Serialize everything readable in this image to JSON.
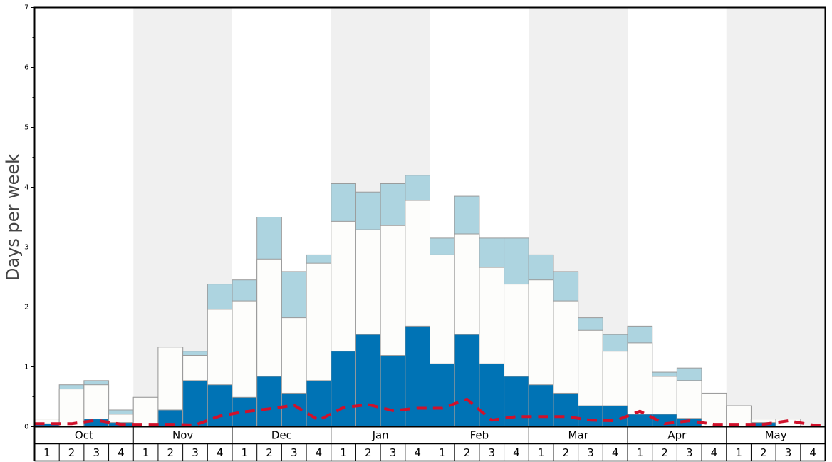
{
  "chart_data": {
    "type": "bar",
    "ylabel": "Days per week",
    "ylim": [
      0,
      7
    ],
    "y_ticks": [
      "0",
      "1",
      "2",
      "3",
      "4",
      "5",
      "6",
      "7"
    ],
    "months": [
      "Oct",
      "Nov",
      "Dec",
      "Jan",
      "Feb",
      "Mar",
      "Apr",
      "May"
    ],
    "week_labels": [
      "1",
      "2",
      "3",
      "4"
    ],
    "colors": {
      "dark": "#0073b5",
      "white": "#fdfdfb",
      "light": "#add4e0",
      "line": "#d0112b",
      "band_shade": "#f0f0f0",
      "bar_border": "#9a9a9a"
    },
    "series": [
      {
        "values": [
          0.05,
          0.0,
          0.13,
          0.07,
          0.0,
          0.28,
          0.77,
          0.7,
          0.49,
          0.84,
          0.56,
          0.77,
          1.26,
          1.54,
          1.19,
          1.68,
          1.05,
          1.54,
          1.05,
          0.84,
          0.7,
          0.56,
          0.35,
          0.35,
          0.21,
          0.21,
          0.14,
          0.0,
          0.0,
          0.07,
          0.0,
          0.0
        ]
      },
      {
        "values": [
          0.13,
          0.63,
          0.7,
          0.21,
          0.49,
          1.33,
          1.19,
          1.96,
          2.1,
          2.8,
          1.82,
          2.73,
          3.43,
          3.29,
          3.36,
          3.78,
          2.87,
          3.22,
          2.66,
          2.38,
          2.45,
          2.1,
          1.61,
          1.26,
          1.4,
          0.84,
          0.77,
          0.56,
          0.35,
          0.13,
          0.13,
          0.0
        ]
      },
      {
        "values": [
          0.13,
          0.7,
          0.77,
          0.28,
          0.49,
          1.33,
          1.26,
          2.38,
          2.45,
          3.5,
          2.59,
          2.87,
          4.06,
          3.92,
          4.06,
          4.2,
          3.15,
          3.85,
          3.15,
          3.15,
          2.87,
          2.59,
          1.82,
          1.54,
          1.68,
          0.91,
          0.98,
          0.56,
          0.35,
          0.13,
          0.13,
          0.0
        ]
      },
      {
        "values": [
          0.05,
          0.05,
          0.11,
          0.04,
          0.04,
          0.04,
          0.03,
          0.18,
          0.25,
          0.3,
          0.36,
          0.11,
          0.32,
          0.37,
          0.27,
          0.31,
          0.31,
          0.46,
          0.11,
          0.17,
          0.17,
          0.17,
          0.11,
          0.1,
          0.26,
          0.05,
          0.1,
          0.04,
          0.04,
          0.04,
          0.1,
          0.03
        ]
      }
    ]
  }
}
